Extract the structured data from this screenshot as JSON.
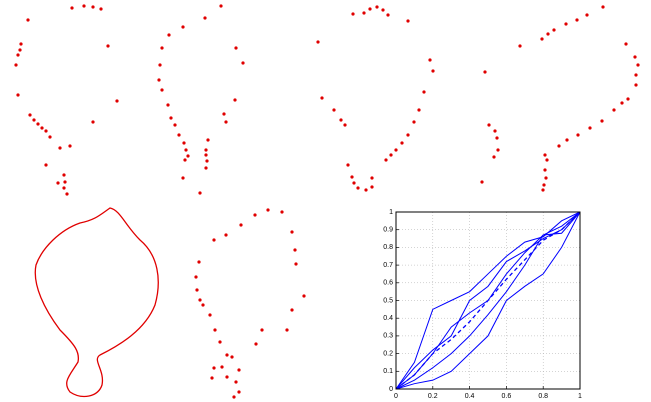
{
  "chart_data": {
    "type": "line",
    "x": [
      0,
      0.1,
      0.2,
      0.3,
      0.4,
      0.5,
      0.6,
      0.7,
      0.8,
      0.9,
      1
    ],
    "series": [
      {
        "color": "#0000ff",
        "values": [
          0,
          0.15,
          0.45,
          0.5,
          0.55,
          0.65,
          0.75,
          0.83,
          0.86,
          0.95,
          1
        ]
      },
      {
        "color": "#0000ff",
        "values": [
          0,
          0.12,
          0.22,
          0.3,
          0.5,
          0.58,
          0.72,
          0.78,
          0.85,
          0.9,
          1
        ]
      },
      {
        "color": "#0000ff",
        "values": [
          0,
          0.08,
          0.2,
          0.35,
          0.43,
          0.5,
          0.65,
          0.77,
          0.87,
          0.92,
          1
        ]
      },
      {
        "color": "#0000ff",
        "values": [
          0,
          0.05,
          0.12,
          0.2,
          0.3,
          0.42,
          0.55,
          0.7,
          0.87,
          0.88,
          1
        ]
      },
      {
        "color": "#0000ff",
        "values": [
          0,
          0.03,
          0.05,
          0.1,
          0.2,
          0.3,
          0.5,
          0.58,
          0.65,
          0.8,
          1
        ]
      },
      {
        "color": "#0000ff",
        "dashed": true,
        "values": [
          0,
          0.08,
          0.2,
          0.28,
          0.38,
          0.5,
          0.62,
          0.73,
          0.84,
          0.9,
          1
        ]
      }
    ],
    "xlim": [
      0,
      1
    ],
    "ylim": [
      0,
      1
    ],
    "xticks": [
      0,
      0.2,
      0.4,
      0.6,
      0.8,
      1
    ],
    "yticks": [
      0,
      0.1,
      0.2,
      0.3,
      0.4,
      0.5,
      0.6,
      0.7,
      0.8,
      0.9,
      1
    ],
    "grid": true
  }
}
